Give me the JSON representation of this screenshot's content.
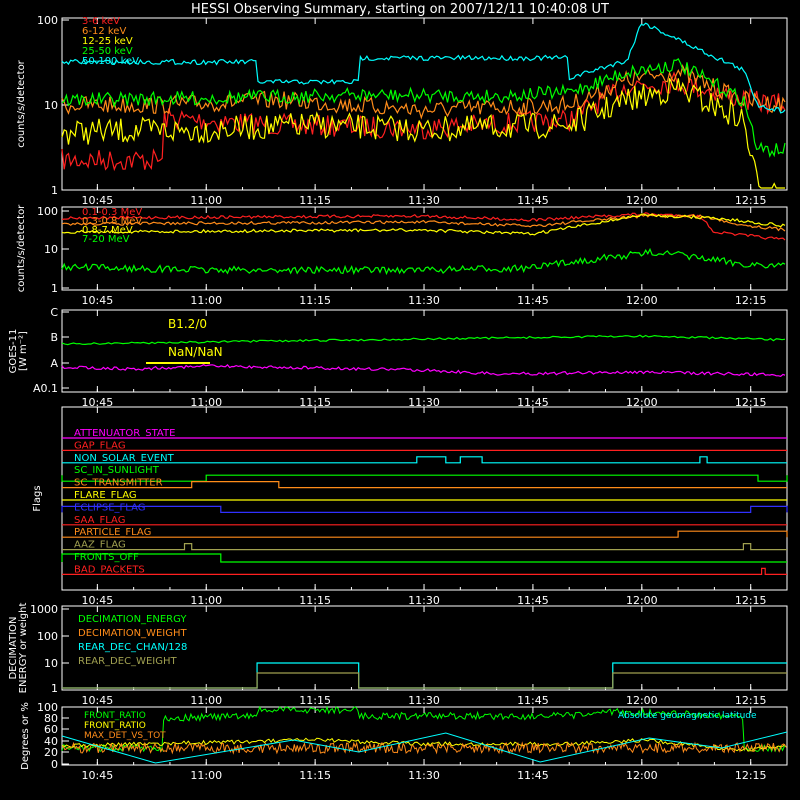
{
  "title": "HESSI Observing Summary, starting on 2007/12/11 10:40:08 UT",
  "time_ticks": [
    "10:45",
    "11:00",
    "11:15",
    "11:30",
    "11:45",
    "12:00",
    "12:15"
  ],
  "chart_data": [
    {
      "type": "line",
      "ylabel": "counts/s/detector",
      "yscale": "log",
      "ylim": [
        1,
        100
      ],
      "ytick_labels": [
        "1",
        "10",
        "100"
      ],
      "legend": "top-left",
      "series": [
        {
          "name": "3-6 keV",
          "color": "#ff2020"
        },
        {
          "name": "6-12 keV",
          "color": "#ff8c1a"
        },
        {
          "name": "12-25 keV",
          "color": "#ffff00"
        },
        {
          "name": "25-50 keV",
          "color": "#00ff00"
        },
        {
          "name": "50-100 keV",
          "color": "#00ffff"
        }
      ]
    },
    {
      "type": "line",
      "ylabel": "counts/s/detector",
      "yscale": "log",
      "ylim": [
        1,
        100
      ],
      "ytick_labels": [
        "1",
        "10",
        "100"
      ],
      "legend": "top-left",
      "series": [
        {
          "name": "0.1-0.3 MeV",
          "color": "#ff2020"
        },
        {
          "name": "0.3-0.8 MeV",
          "color": "#ff8c1a"
        },
        {
          "name": "0.8-7 MeV",
          "color": "#ffff00"
        },
        {
          "name": "7-20 MeV",
          "color": "#00ff00"
        }
      ]
    },
    {
      "type": "line",
      "ylabel": "GOES-11",
      "ylabel2": "[W m⁻²]",
      "ytick_labels": [
        "A0.1",
        "A",
        "B",
        "C"
      ],
      "annotations": [
        "B1.2/0",
        "NaN/NaN"
      ],
      "series": [
        {
          "color": "#00ff00",
          "level": "B"
        },
        {
          "color": "#ff00ff",
          "level": "A"
        }
      ]
    },
    {
      "type": "line",
      "ylabel": "Flags",
      "flags": [
        {
          "name": "ATTENUATOR_STATE",
          "color": "#ff00ff"
        },
        {
          "name": "GAP_FLAG",
          "color": "#ff2020"
        },
        {
          "name": "NON_SOLAR_EVENT",
          "color": "#00ffff"
        },
        {
          "name": "SC_IN_SUNLIGHT",
          "color": "#00ff00"
        },
        {
          "name": "SC_TRANSMITTER",
          "color": "#ff8c1a"
        },
        {
          "name": "FLARE_FLAG",
          "color": "#ffff00"
        },
        {
          "name": "ECLIPSE_FLAG",
          "color": "#3030ff"
        },
        {
          "name": "SAA_FLAG",
          "color": "#ff2020"
        },
        {
          "name": "PARTICLE_FLAG",
          "color": "#ff8c1a"
        },
        {
          "name": "AAZ_FLAG",
          "color": "#a0a050"
        },
        {
          "name": "FRONTS_OFF",
          "color": "#00ff00"
        },
        {
          "name": "BAD_PACKETS",
          "color": "#ff2020"
        }
      ]
    },
    {
      "type": "line",
      "ylabel": "DECIMATION",
      "ylabel2": "ENERGY or weight",
      "yscale": "log",
      "ylim": [
        1,
        1000
      ],
      "ytick_labels": [
        "1",
        "10",
        "100",
        "1000"
      ],
      "legend": "top-left",
      "series": [
        {
          "name": "DECIMATION_ENERGY",
          "color": "#00ff00"
        },
        {
          "name": "DECIMATION_WEIGHT",
          "color": "#ff8c1a"
        },
        {
          "name": "REAR_DEC_CHAN/128",
          "color": "#00ffff"
        },
        {
          "name": "REAR_DEC_WEIGHT",
          "color": "#a0a050"
        }
      ]
    },
    {
      "type": "line",
      "ylabel": "Degrees or %",
      "ylim": [
        0,
        100
      ],
      "ytick_labels": [
        "0",
        "20",
        "40",
        "60",
        "80",
        "100"
      ],
      "legend": "top-left",
      "series": [
        {
          "name": "FRONT_RATIO",
          "color": "#00ff00"
        },
        {
          "name": "FRONT_RATIO",
          "color": "#ffff00"
        },
        {
          "name": "MAX_DET_VS_TOT",
          "color": "#ff8c1a"
        },
        {
          "name": "Absolute geomagnetic latitude",
          "color": "#00ffff"
        }
      ]
    }
  ]
}
